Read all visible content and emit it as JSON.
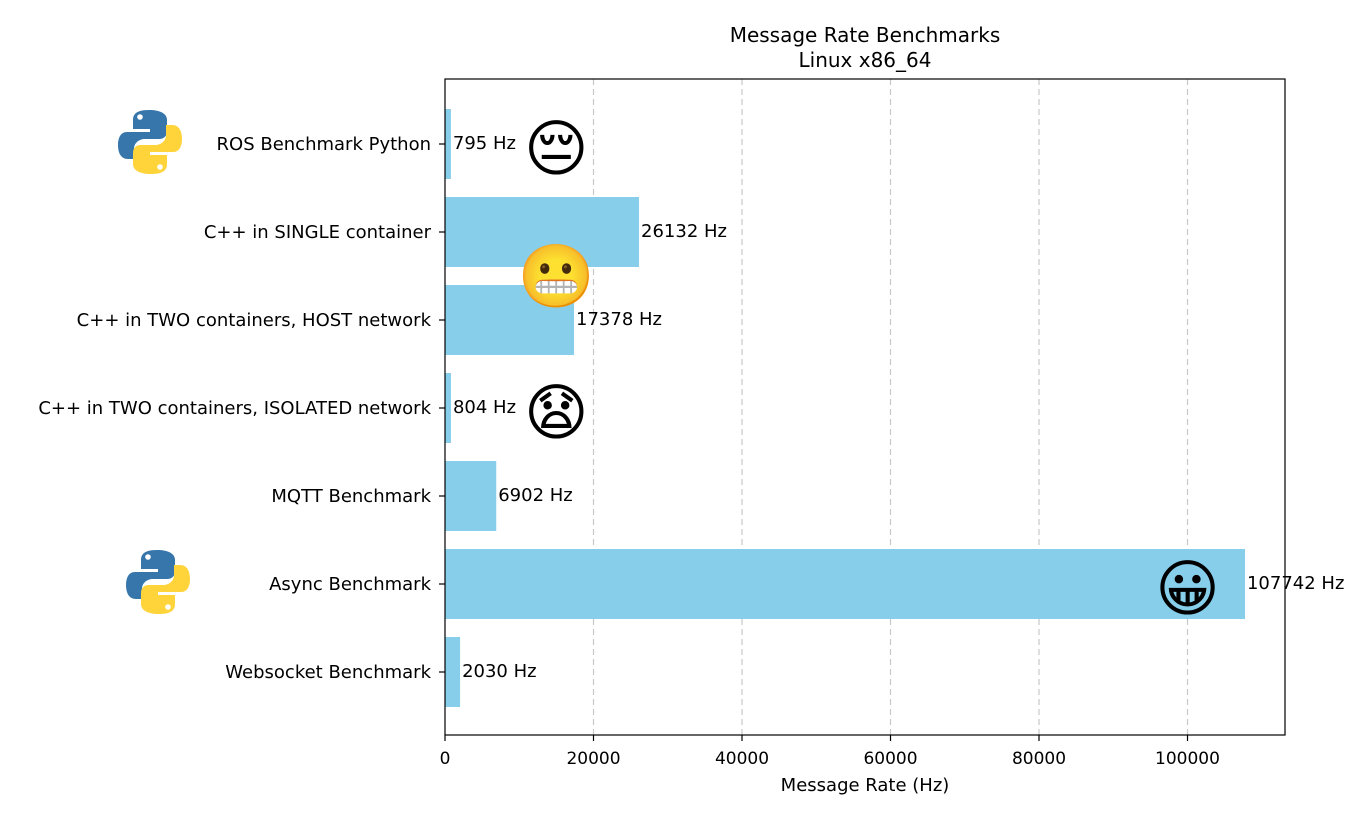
{
  "chart_data": {
    "type": "bar",
    "orientation": "horizontal",
    "title": "Message Rate Benchmarks",
    "subtitle": "Linux x86_64",
    "xlabel": "Message Rate (Hz)",
    "ylabel": "",
    "xlim": [
      0,
      113130
    ],
    "xticks": [
      0,
      20000,
      40000,
      60000,
      80000,
      100000
    ],
    "xtick_labels": [
      "0",
      "20000",
      "40000",
      "60000",
      "80000",
      "100000"
    ],
    "grid": "x-dashed",
    "bar_color": "#87ceeb",
    "categories": [
      "ROS Benchmark Python",
      "C++ in SINGLE container",
      "C++ in TWO containers, HOST network",
      "C++ in TWO containers, ISOLATED network",
      "MQTT Benchmark",
      "Async Benchmark",
      "Websocket Benchmark"
    ],
    "values": [
      795,
      26132,
      17378,
      804,
      6902,
      107742,
      2030
    ],
    "data_labels": [
      "795 Hz",
      "26132 Hz",
      "17378 Hz",
      "804 Hz",
      "6902 Hz",
      "107742 Hz",
      "2030 Hz"
    ],
    "emoji_annotations": [
      {
        "category_index": 0,
        "x": 15000,
        "emoji": "pensive-face",
        "glyph": "😔"
      },
      {
        "category_index": 1.45,
        "x": 15000,
        "emoji": "grimacing-face",
        "glyph": "😬"
      },
      {
        "category_index": 3,
        "x": 15000,
        "emoji": "anguished-face",
        "glyph": "😧"
      },
      {
        "category_index": 5,
        "x": 100000,
        "emoji": "grinning-face",
        "glyph": "😀"
      }
    ],
    "python_logo_rows": [
      0,
      5
    ]
  }
}
